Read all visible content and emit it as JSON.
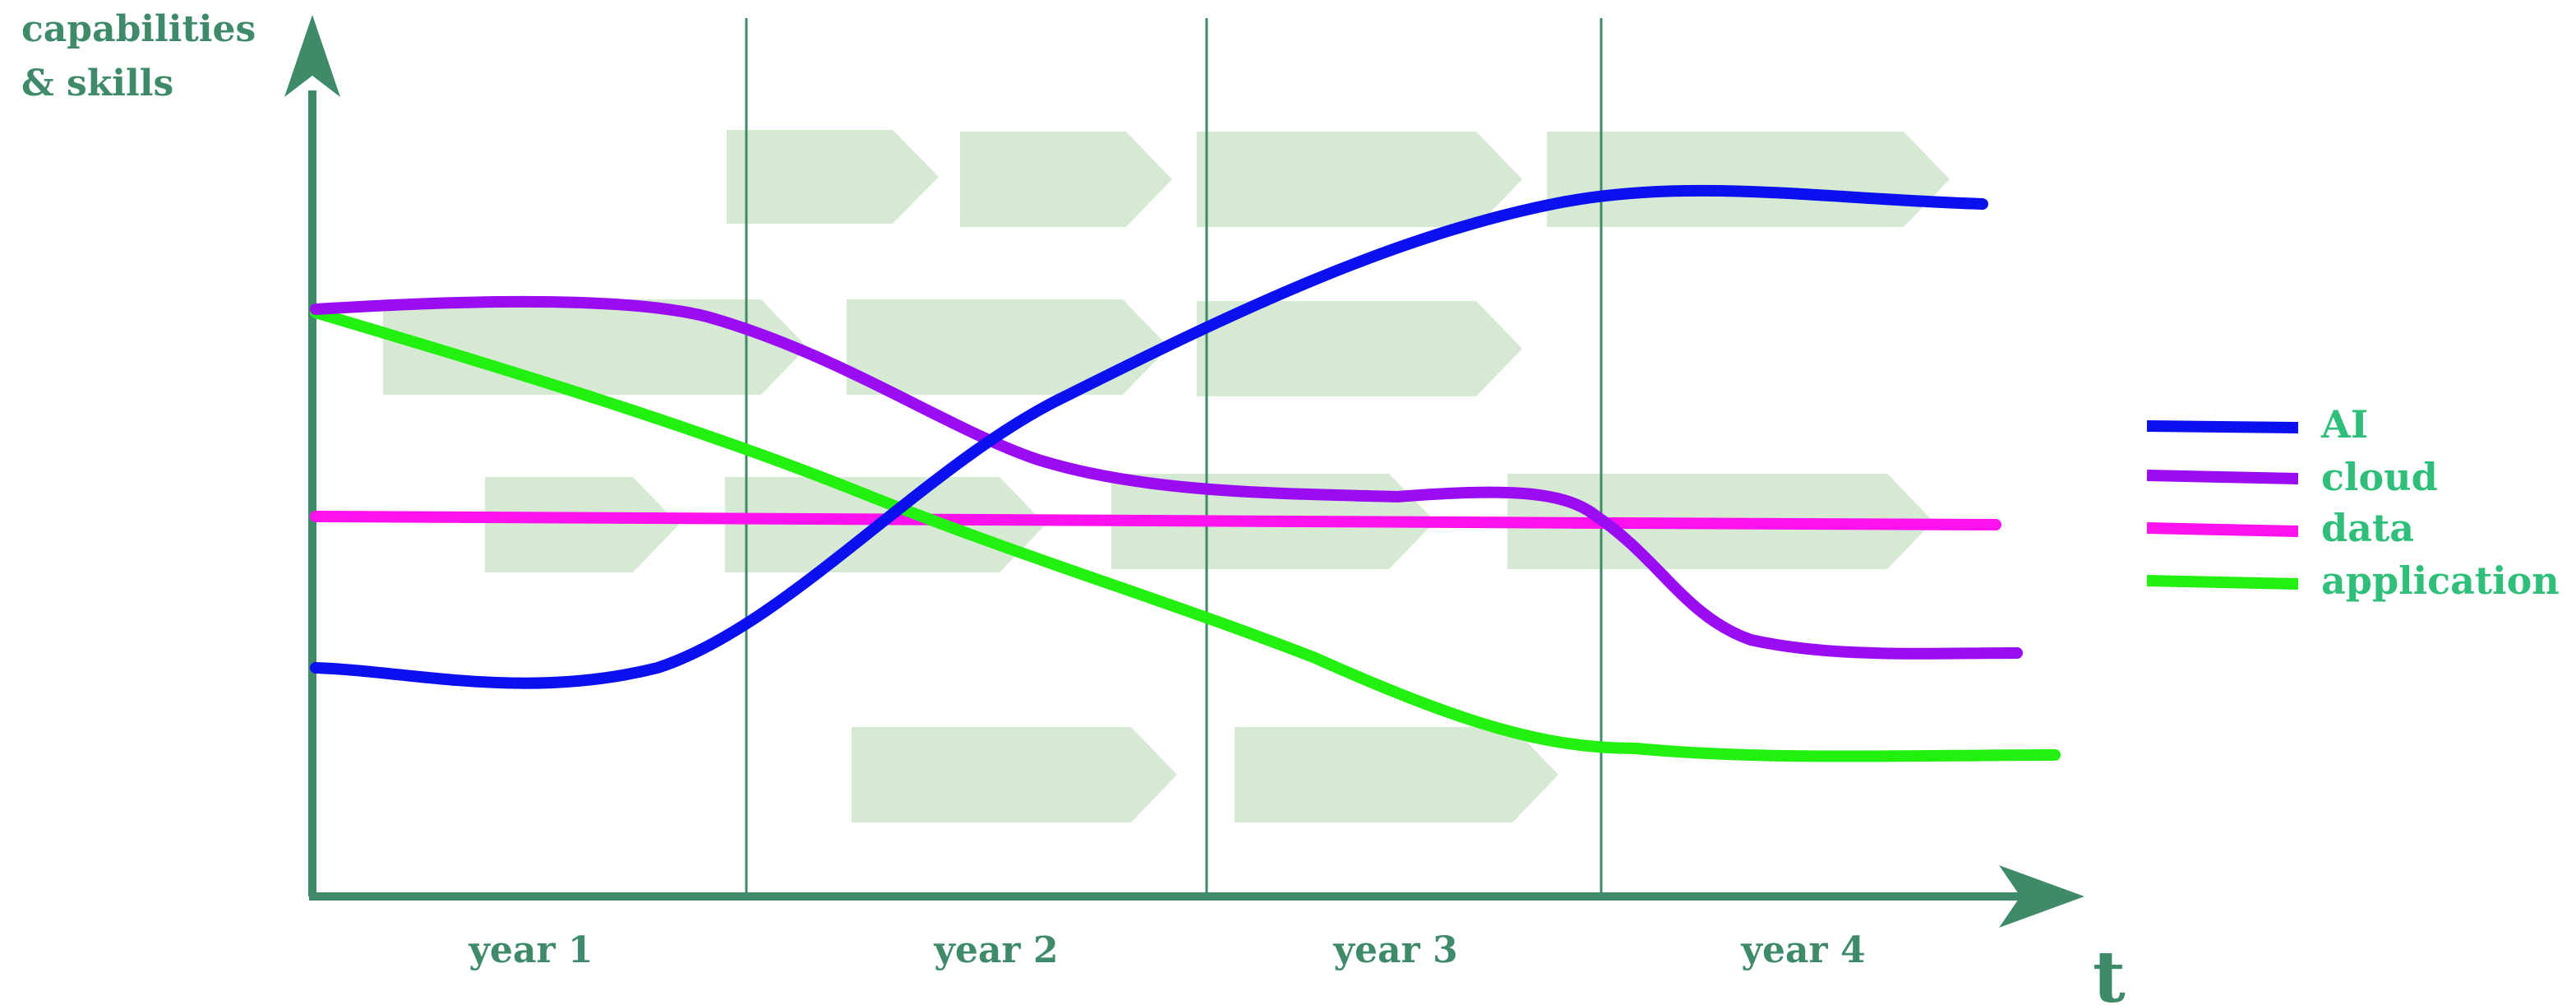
{
  "y_axis_label": [
    "capabilities",
    "& skills"
  ],
  "x_axis_label": "t",
  "periods": [
    "year 1",
    "year 2",
    "year 3",
    "year 4"
  ],
  "legend": [
    {
      "label": "AI",
      "color": "#0a10ee"
    },
    {
      "label": "cloud",
      "color": "#9a0cf2"
    },
    {
      "label": "data",
      "color": "#ff10ee"
    },
    {
      "label": "application",
      "color": "#22f00e"
    }
  ],
  "colors": {
    "axis": "#3f8a68",
    "arrow_block": "#d6ead3",
    "legend_text": "#2fbf7a"
  }
}
